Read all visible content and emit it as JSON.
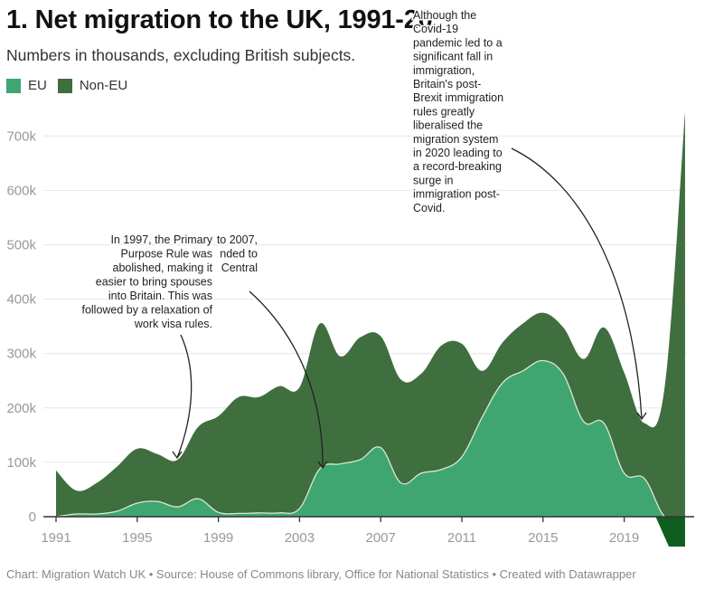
{
  "title": "1. Net migration to the UK, 1991-20",
  "subtitle": "Numbers in thousands, excluding British subjects.",
  "legend": [
    {
      "label": "EU",
      "color": "#40a671"
    },
    {
      "label": "Non-EU",
      "color": "#3f6e3f"
    }
  ],
  "negative_color": "#0f5e1f",
  "footer": "Chart: Migration Watch UK • Source: House of Commons library, Office for National Statistics • Created with Datawrapper",
  "chart_data": {
    "type": "area",
    "stacked": true,
    "title": "1. Net migration to the UK, 1991-20",
    "subtitle": "Numbers in thousands, excluding British subjects.",
    "xlabel": "",
    "ylabel": "",
    "x": [
      1991,
      1992,
      1993,
      1994,
      1995,
      1996,
      1997,
      1998,
      1999,
      2000,
      2001,
      2002,
      2003,
      2004,
      2005,
      2006,
      2007,
      2008,
      2009,
      2010,
      2011,
      2012,
      2013,
      2014,
      2015,
      2016,
      2017,
      2018,
      2019,
      2020,
      2021,
      2022
    ],
    "series": [
      {
        "name": "EU",
        "values": [
          0,
          5,
          5,
          10,
          25,
          28,
          18,
          33,
          8,
          6,
          7,
          7,
          15,
          88,
          97,
          105,
          127,
          62,
          80,
          87,
          110,
          183,
          246,
          268,
          287,
          262,
          175,
          172,
          80,
          70,
          -10,
          -55
        ]
      },
      {
        "name": "Non-EU",
        "values": [
          85,
          43,
          57,
          82,
          100,
          87,
          87,
          132,
          177,
          214,
          213,
          233,
          223,
          267,
          198,
          225,
          205,
          190,
          183,
          228,
          208,
          85,
          74,
          87,
          88,
          86,
          115,
          176,
          185,
          102,
          250,
          800
        ]
      }
    ],
    "totals": [
      85,
      48,
      62,
      92,
      125,
      115,
      105,
      165,
      185,
      220,
      220,
      240,
      238,
      355,
      295,
      330,
      332,
      252,
      263,
      315,
      318,
      268,
      320,
      355,
      375,
      348,
      290,
      348,
      265,
      172,
      240,
      745
    ],
    "ylim": [
      -60,
      760
    ],
    "yticks": [
      0,
      100,
      200,
      300,
      400,
      500,
      600,
      700
    ],
    "ytick_labels": [
      "0",
      "100k",
      "200k",
      "300k",
      "400k",
      "500k",
      "600k",
      "700k"
    ],
    "xticks": [
      1991,
      1995,
      1999,
      2003,
      2007,
      2011,
      2015,
      2019
    ],
    "xtick_labels": [
      "1991",
      "1995",
      "1999",
      "2003",
      "2007",
      "2011",
      "2015",
      "2019"
    ],
    "grid": true,
    "legend_position": "top-left",
    "annotations": [
      {
        "id": "a1997",
        "text_lines": [
          "In 1997, the Primary",
          "Purpose Rule was",
          "abolished, making it",
          "easier to bring spouses",
          "into Britain. This was",
          "followed by a relaxation of",
          "work visa rules."
        ],
        "target_x": 1997,
        "target_y": 105
      },
      {
        "id": "a2004",
        "text_lines": [
          "to 2007,",
          "nded to",
          "Central"
        ],
        "target_x": 2004,
        "target_y": 88
      },
      {
        "id": "a2020",
        "text_lines": [
          "Although the",
          "Covid-19",
          "pandemic led to a",
          "significant fall in",
          "immigration,",
          "Britain's post-",
          "Brexit immigration",
          "rules greatly",
          "liberalised the",
          "migration system",
          "in 2020 leading to",
          "a record-breaking",
          "surge in",
          "immigration post-",
          "Covid."
        ],
        "target_x": 2020,
        "target_y": 172
      }
    ]
  }
}
